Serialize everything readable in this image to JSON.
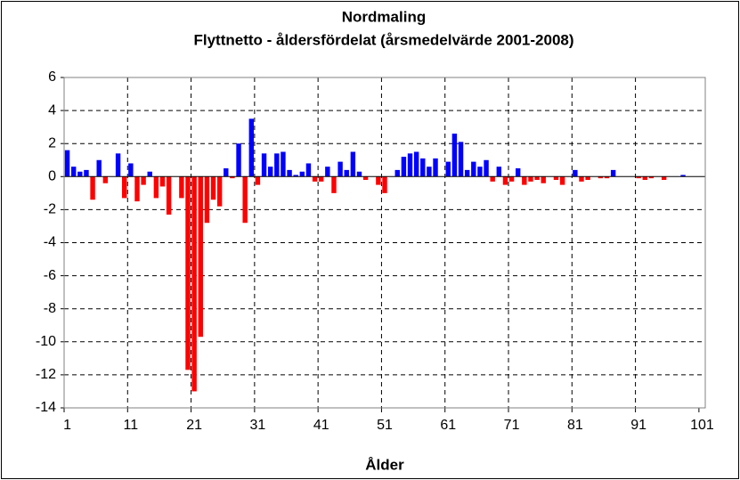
{
  "chart_data": {
    "type": "bar",
    "title": "Nordmaling",
    "subtitle": "Flyttnetto - åldersfördelat (årsmedelvärde 2001-2008)",
    "x_label": "Ålder",
    "categories": [
      "1",
      null,
      null,
      null,
      null,
      null,
      null,
      null,
      null,
      null,
      "11",
      null,
      null,
      null,
      null,
      null,
      null,
      null,
      null,
      null,
      "21",
      null,
      null,
      null,
      null,
      null,
      null,
      null,
      null,
      null,
      "31",
      null,
      null,
      null,
      null,
      null,
      null,
      null,
      null,
      null,
      "41",
      null,
      null,
      null,
      null,
      null,
      null,
      null,
      null,
      null,
      "51",
      null,
      null,
      null,
      null,
      null,
      null,
      null,
      null,
      null,
      "61",
      null,
      null,
      null,
      null,
      null,
      null,
      null,
      null,
      null,
      "71",
      null,
      null,
      null,
      null,
      null,
      null,
      null,
      null,
      null,
      "81",
      null,
      null,
      null,
      null,
      null,
      null,
      null,
      null,
      null,
      "91",
      null,
      null,
      null,
      null,
      null,
      null,
      null,
      null,
      null,
      "101"
    ],
    "values": [
      1.6,
      0.6,
      0.3,
      0.4,
      -1.4,
      1.0,
      -0.4,
      0,
      1.4,
      -1.3,
      0.8,
      -1.5,
      -0.5,
      0.3,
      -1.3,
      -0.6,
      -2.3,
      0,
      -1.3,
      -11.7,
      -13.0,
      -9.7,
      -2.8,
      -1.4,
      -1.8,
      0.5,
      -0.1,
      2.0,
      -2.8,
      3.5,
      -0.5,
      1.4,
      0.6,
      1.4,
      1.5,
      0.4,
      0.1,
      0.3,
      0.8,
      -0.3,
      -0.3,
      0.6,
      -1.0,
      0.9,
      0.4,
      1.5,
      0.3,
      -0.2,
      0,
      -0.5,
      -1.0,
      0,
      0.4,
      1.2,
      1.4,
      1.5,
      1.1,
      0.6,
      1.1,
      0,
      0.9,
      2.6,
      2.1,
      0.4,
      0.9,
      0.6,
      1.0,
      -0.3,
      0.6,
      -0.5,
      -0.3,
      0.5,
      -0.5,
      -0.3,
      -0.2,
      -0.4,
      0,
      -0.2,
      -0.5,
      0,
      0.4,
      -0.3,
      -0.2,
      0,
      -0.1,
      -0.1,
      0.4,
      0,
      0,
      0,
      -0.1,
      -0.2,
      -0.1,
      0,
      -0.2,
      0,
      0,
      0.1,
      0,
      0,
      0
    ],
    "positive_color": "#0000ff",
    "negative_color": "#ff0000",
    "ylim": [
      -14,
      6
    ],
    "yticks": [
      -14,
      -12,
      -10,
      -8,
      -6,
      -4,
      -2,
      0,
      2,
      4,
      6
    ],
    "grid": true
  }
}
